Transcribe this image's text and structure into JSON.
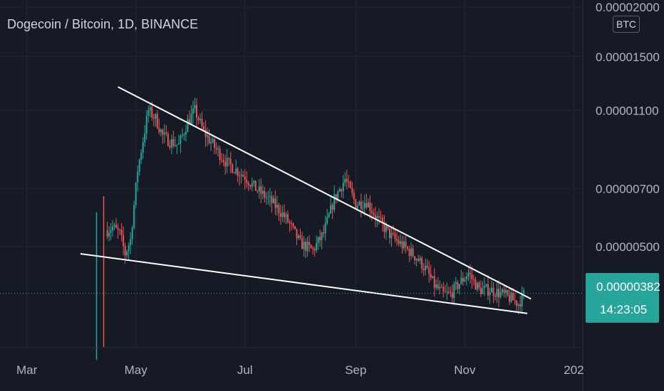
{
  "header": {
    "title": "Dogecoin / Bitcoin, 1D, BINANCE",
    "currency": "BTC"
  },
  "price_tag": {
    "value": "0.00000382",
    "countdown": "14:23:05"
  },
  "colors": {
    "background": "#161a25",
    "grid": "#242733",
    "up": "#26a69a",
    "down": "#ef5350",
    "trendline": "#ffffff",
    "axis_text": "#b2b5be",
    "price_line": "#26a69a"
  },
  "chart_data": {
    "type": "candlestick",
    "title": "Dogecoin / Bitcoin, 1D, BINANCE",
    "y_axis": {
      "scale": "log",
      "labels": [
        "0.00000500",
        "0.00000700",
        "0.00001100",
        "0.00001500",
        "0.00002000"
      ],
      "values": [
        5e-06,
        7e-06,
        1.1e-05,
        1.5e-05,
        2e-05
      ],
      "range": [
        2.7e-06,
        2.1e-05
      ]
    },
    "x_axis": {
      "labels": [
        "Mar",
        "May",
        "Jul",
        "Sep",
        "Nov",
        "202"
      ],
      "values": [
        "2021-03-01",
        "2021-05-01",
        "2021-07-01",
        "2021-09-01",
        "2021-11-01",
        "2022-01-01"
      ],
      "range": [
        "2021-02-14",
        "2022-01-06"
      ]
    },
    "current_price": 3.82e-06,
    "grid": true,
    "price_path": {
      "dates": [
        "2021-04-15",
        "2021-04-18",
        "2021-04-22",
        "2021-04-25",
        "2021-04-28",
        "2021-05-02",
        "2021-05-08",
        "2021-05-12",
        "2021-05-16",
        "2021-05-20",
        "2021-05-25",
        "2021-05-30",
        "2021-06-03",
        "2021-06-08",
        "2021-06-14",
        "2021-06-20",
        "2021-06-26",
        "2021-07-01",
        "2021-07-07",
        "2021-07-14",
        "2021-07-20",
        "2021-07-25",
        "2021-08-01",
        "2021-08-08",
        "2021-08-14",
        "2021-08-20",
        "2021-08-26",
        "2021-09-01",
        "2021-09-07",
        "2021-09-14",
        "2021-09-21",
        "2021-09-28",
        "2021-10-05",
        "2021-10-10",
        "2021-10-15",
        "2021-10-20",
        "2021-10-24",
        "2021-10-28",
        "2021-11-03",
        "2021-11-09",
        "2021-11-15",
        "2021-11-22",
        "2021-11-27",
        "2021-12-01",
        "2021-12-04"
      ],
      "values": [
        5.5e-06,
        5.6e-06,
        5.4e-06,
        4.8e-06,
        5.2e-06,
        7.8e-06,
        1.1e-05,
        1.05e-05,
        9.5e-06,
        9.2e-06,
        9e-06,
        1.03e-05,
        1.1e-05,
        9.7e-06,
        8.9e-06,
        8.2e-06,
        7.8e-06,
        7.5e-06,
        7e-06,
        6.6e-06,
        6.2e-06,
        5.8e-06,
        5.1e-06,
        4.9e-06,
        5.4e-06,
        6.6e-06,
        7.4e-06,
        6.4e-06,
        6.5e-06,
        5.8e-06,
        5.3e-06,
        5e-06,
        4.7e-06,
        4.4e-06,
        4e-06,
        3.8e-06,
        3.8e-06,
        4e-06,
        4.3e-06,
        3.9e-06,
        3.9e-06,
        3.8e-06,
        3.7e-06,
        3.6e-06,
        3.8e-06
      ]
    },
    "trendlines": [
      {
        "name": "",
        "points": [
          [
            "2021-04-21",
            1.26e-05
          ],
          [
            "2021-12-08",
            3.7e-06
          ]
        ]
      },
      {
        "name": "",
        "points": [
          [
            "2021-03-31",
            4.8e-06
          ],
          [
            "2021-12-06",
            3.4e-06
          ]
        ]
      }
    ]
  }
}
